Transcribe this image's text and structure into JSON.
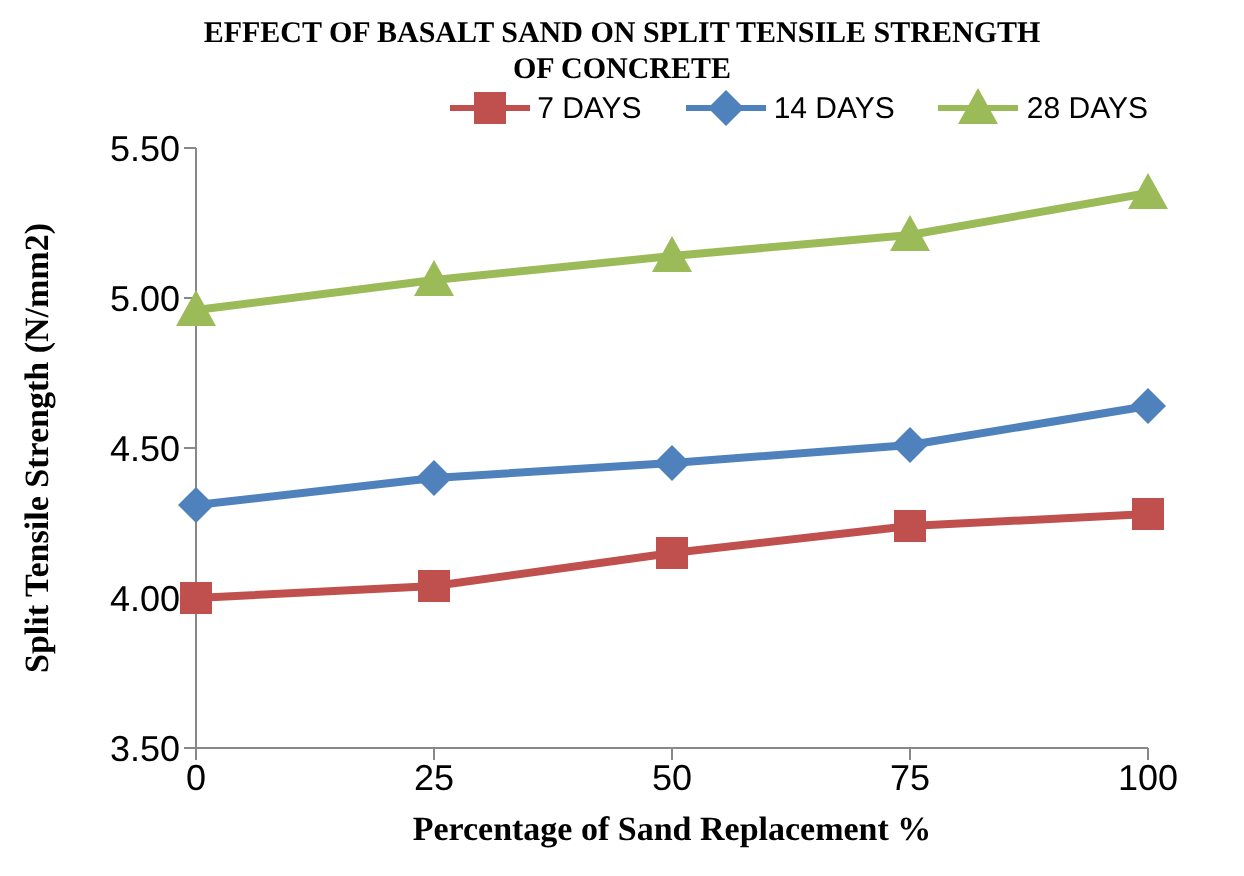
{
  "chart_data": {
    "type": "line",
    "title": "EFFECT OF BASALT SAND ON SPLIT TENSILE STRENGTH OF CONCRETE",
    "xlabel": "Percentage of Sand Replacement %",
    "ylabel": "Split Tensile  Strength (N/mm2)",
    "categories": [
      "0",
      "25",
      "50",
      "75",
      "100"
    ],
    "series": [
      {
        "name": "7 DAYS",
        "color": "#c0504d",
        "marker": "square",
        "values": [
          4.0,
          4.04,
          4.15,
          4.24,
          4.28
        ]
      },
      {
        "name": "14 DAYS",
        "color": "#4f81bd",
        "marker": "diamond",
        "values": [
          4.31,
          4.4,
          4.45,
          4.51,
          4.64
        ]
      },
      {
        "name": "28 DAYS",
        "color": "#9bbb59",
        "marker": "triangle",
        "values": [
          4.96,
          5.06,
          5.14,
          5.21,
          5.35
        ]
      }
    ],
    "ylim": [
      3.5,
      5.5
    ],
    "yticks": [
      {
        "value": 3.5,
        "label": "3.50"
      },
      {
        "value": 4,
        "label": "4.00"
      },
      {
        "value": 4.5,
        "label": "4.50"
      },
      {
        "value": 5,
        "label": "5.00"
      },
      {
        "value": 5.5,
        "label": "5.50"
      }
    ],
    "grid": false,
    "legend": "top",
    "line_style": "solid"
  }
}
